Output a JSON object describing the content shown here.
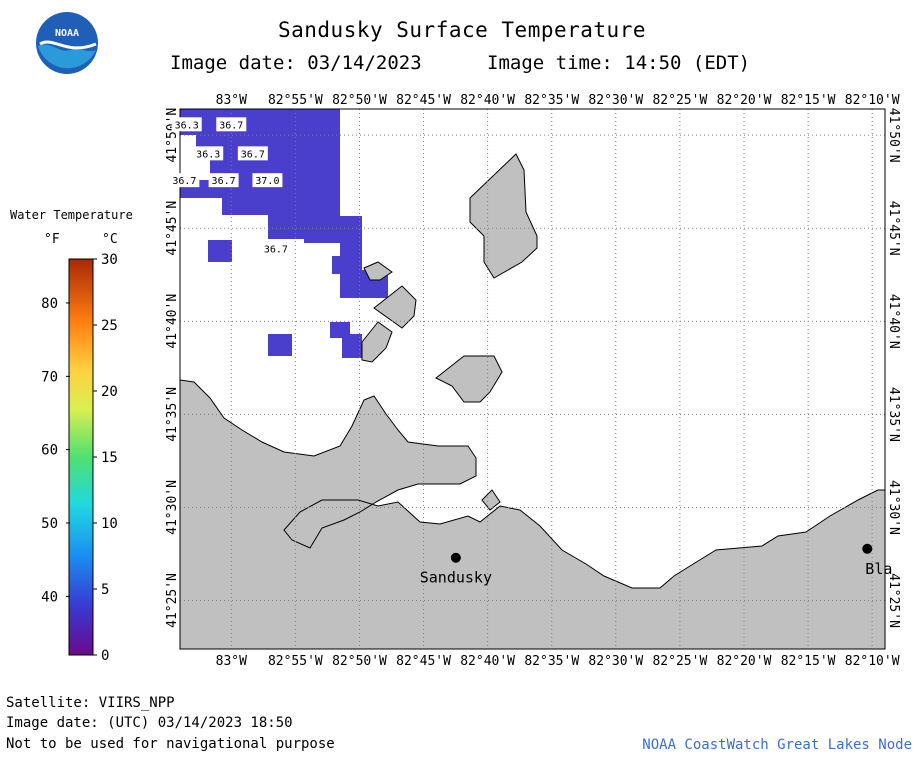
{
  "header": {
    "title": "Sandusky Surface Temperature",
    "image_date": "Image date: 03/14/2023",
    "image_time": "Image time: 14:50 (EDT)"
  },
  "logo": {
    "text": "NOAA"
  },
  "legend": {
    "title": "Water Temperature",
    "unit_f": "°F",
    "unit_c": "°C",
    "f_ticks": [
      {
        "label": "40",
        "value_c": 4.44
      },
      {
        "label": "50",
        "value_c": 10.0
      },
      {
        "label": "60",
        "value_c": 15.56
      },
      {
        "label": "70",
        "value_c": 21.11
      },
      {
        "label": "80",
        "value_c": 26.67
      }
    ],
    "c_ticks": [
      {
        "label": "0",
        "value_c": 0
      },
      {
        "label": "5",
        "value_c": 5
      },
      {
        "label": "10",
        "value_c": 10
      },
      {
        "label": "15",
        "value_c": 15
      },
      {
        "label": "20",
        "value_c": 20
      },
      {
        "label": "25",
        "value_c": 25
      },
      {
        "label": "30",
        "value_c": 30
      }
    ],
    "c_range": [
      0,
      30
    ]
  },
  "map": {
    "lon_range": [
      -83.0667,
      -82.15
    ],
    "lat_range": [
      41.3733,
      41.8567
    ],
    "lon_ticks": [
      {
        "label": "83°W",
        "value": -83.0
      },
      {
        "label": "82°55'W",
        "value": -82.9167
      },
      {
        "label": "82°50'W",
        "value": -82.8333
      },
      {
        "label": "82°45'W",
        "value": -82.75
      },
      {
        "label": "82°40'W",
        "value": -82.6667
      },
      {
        "label": "82°35'W",
        "value": -82.5833
      },
      {
        "label": "82°30'W",
        "value": -82.5
      },
      {
        "label": "82°25'W",
        "value": -82.4167
      },
      {
        "label": "82°20'W",
        "value": -82.3333
      },
      {
        "label": "82°15'W",
        "value": -82.25
      },
      {
        "label": "82°10'W",
        "value": -82.1667
      }
    ],
    "lat_ticks": [
      {
        "label": "41°25'N",
        "value": 41.4167
      },
      {
        "label": "41°30'N",
        "value": 41.5
      },
      {
        "label": "41°35'N",
        "value": 41.5833
      },
      {
        "label": "41°40'N",
        "value": 41.6667
      },
      {
        "label": "41°45'N",
        "value": 41.75
      },
      {
        "label": "41°50'N",
        "value": 41.8333
      }
    ],
    "water_temp_color": "#4a3fcc",
    "land_color": "#c0c0c0",
    "grid": true,
    "temperature_labels": [
      {
        "text": "36.3",
        "lon": -83.058,
        "lat": 41.843
      },
      {
        "text": "36.7",
        "lon": -83.0,
        "lat": 41.843
      },
      {
        "text": "36.3",
        "lon": -83.03,
        "lat": 41.817
      },
      {
        "text": "36.7",
        "lon": -82.972,
        "lat": 41.817
      },
      {
        "text": "36.7",
        "lon": -83.061,
        "lat": 41.793
      },
      {
        "text": "36.7",
        "lon": -83.01,
        "lat": 41.793
      },
      {
        "text": "37.0",
        "lon": -82.953,
        "lat": 41.793
      },
      {
        "text": "36.7",
        "lon": -82.942,
        "lat": 41.732
      }
    ],
    "cities": [
      {
        "label": "Sandusky",
        "lon": -82.708,
        "lat": 41.455
      },
      {
        "label": "Bla",
        "lon": -82.173,
        "lat": 41.463
      }
    ]
  },
  "footer": {
    "satellite": "Satellite: VIIRS_NPP",
    "utc_date": "Image date: (UTC) 03/14/2023  18:50",
    "disclaimer": "Not to be used for navigational purpose",
    "credit": "NOAA CoastWatch Great Lakes Node"
  }
}
